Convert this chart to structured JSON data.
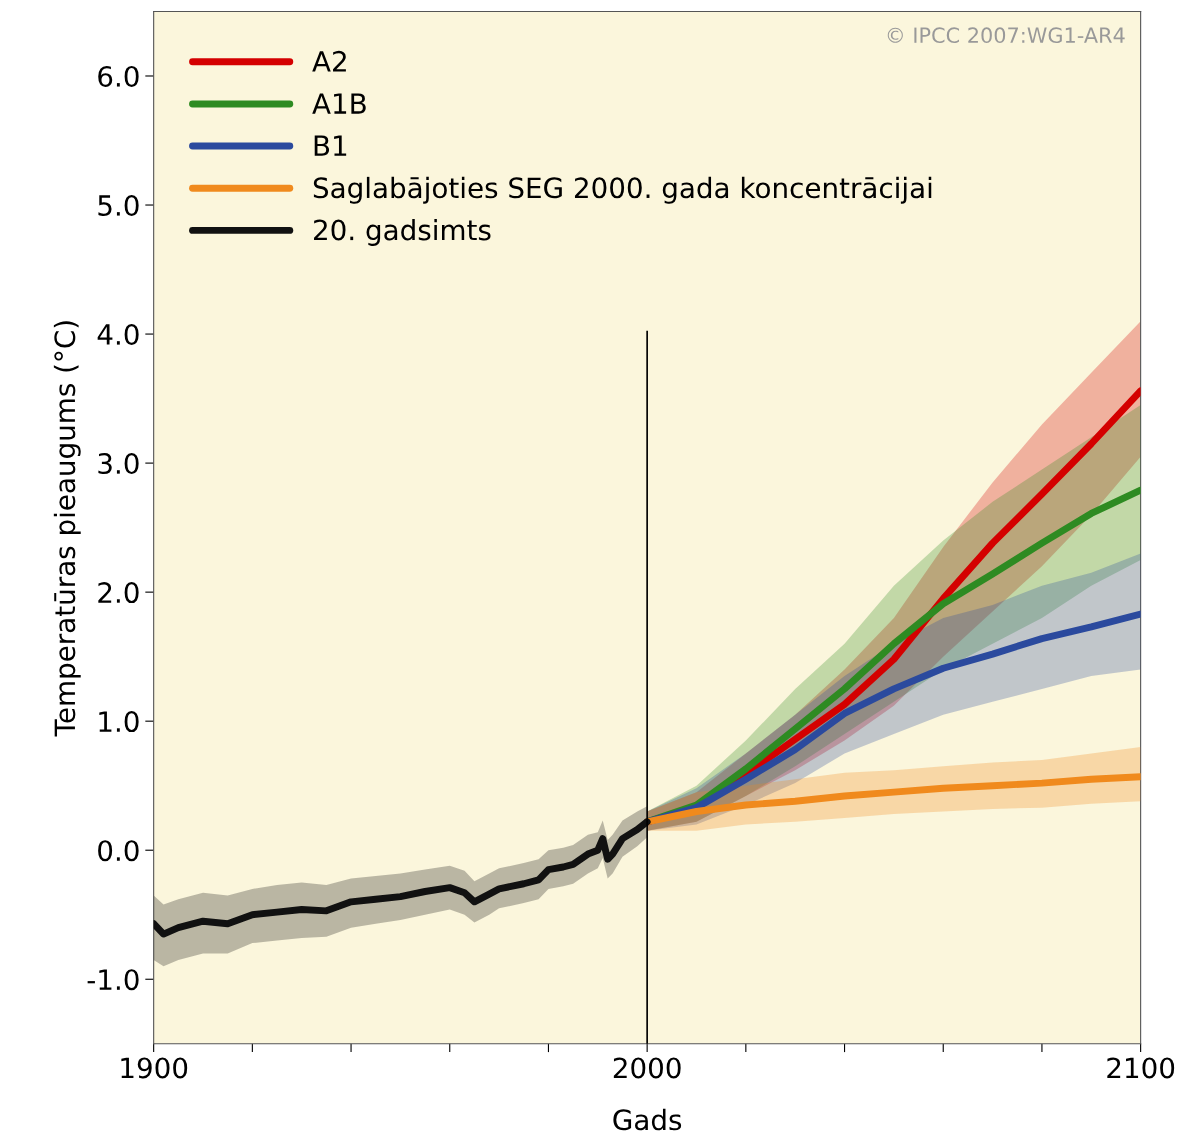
{
  "chart_data": {
    "type": "line",
    "xlabel": "Gads",
    "ylabel": "Temperatūras pieaugums (°C)",
    "xlim": [
      1900,
      2100
    ],
    "xticks": [
      1900,
      {
        "value": 1920,
        "label": null
      },
      {
        "value": 1940,
        "label": null
      },
      {
        "value": 1960,
        "label": null
      },
      {
        "value": 1980,
        "label": null
      },
      2000,
      {
        "value": 2020,
        "label": null
      },
      {
        "value": 2040,
        "label": null
      },
      {
        "value": 2060,
        "label": null
      },
      {
        "value": 2080,
        "label": null
      },
      2100
    ],
    "ylim": [
      -1.5,
      6.5
    ],
    "yticks": [
      {
        "value": -1.0,
        "label": "-1.0"
      },
      {
        "value": 0.0,
        "label": "0.0"
      },
      {
        "value": 1.0,
        "label": "1.0"
      },
      {
        "value": 2.0,
        "label": "2.0"
      },
      {
        "value": 3.0,
        "label": "3.0"
      },
      {
        "value": 4.0,
        "label": "4.0"
      },
      {
        "value": 5.0,
        "label": "5.0"
      },
      {
        "value": 6.0,
        "label": "6.0"
      }
    ],
    "grid": false,
    "legend": "top left",
    "line_style": "solid",
    "marker": "none",
    "ref_lines": [
      {
        "axis": "x",
        "value": 2000,
        "label": null,
        "color": "#000000"
      }
    ],
    "annotations": [
      "© IPCC 2007:WG1-AR4"
    ],
    "series": [
      {
        "name": "A2",
        "color": "#d40000",
        "x": [
          2000,
          2010,
          2020,
          2030,
          2040,
          2050,
          2060,
          2070,
          2080,
          2090,
          2100
        ],
        "values": [
          0.22,
          0.33,
          0.59,
          0.86,
          1.13,
          1.48,
          1.95,
          2.38,
          2.76,
          3.15,
          3.56
        ],
        "lower": [
          0.15,
          0.22,
          0.42,
          0.62,
          0.85,
          1.12,
          1.5,
          1.85,
          2.2,
          2.6,
          3.05
        ],
        "upper": [
          0.3,
          0.45,
          0.75,
          1.05,
          1.4,
          1.8,
          2.35,
          2.85,
          3.3,
          3.7,
          4.1
        ]
      },
      {
        "name": "A1B",
        "color": "#2e8b22",
        "x": [
          2000,
          2010,
          2020,
          2030,
          2040,
          2050,
          2060,
          2070,
          2080,
          2090,
          2100
        ],
        "values": [
          0.22,
          0.35,
          0.63,
          0.94,
          1.25,
          1.6,
          1.91,
          2.14,
          2.38,
          2.61,
          2.79
        ],
        "lower": [
          0.15,
          0.22,
          0.42,
          0.65,
          0.9,
          1.15,
          1.4,
          1.6,
          1.8,
          2.05,
          2.25
        ],
        "upper": [
          0.3,
          0.5,
          0.85,
          1.25,
          1.6,
          2.05,
          2.4,
          2.7,
          2.95,
          3.2,
          3.45
        ]
      },
      {
        "name": "B1",
        "color": "#2b4a9e",
        "x": [
          2000,
          2010,
          2020,
          2030,
          2040,
          2050,
          2060,
          2070,
          2080,
          2090,
          2100
        ],
        "values": [
          0.22,
          0.33,
          0.55,
          0.78,
          1.06,
          1.25,
          1.41,
          1.52,
          1.64,
          1.73,
          1.83
        ],
        "lower": [
          0.15,
          0.2,
          0.35,
          0.52,
          0.75,
          0.9,
          1.05,
          1.15,
          1.25,
          1.35,
          1.4
        ],
        "upper": [
          0.3,
          0.48,
          0.75,
          1.05,
          1.35,
          1.6,
          1.8,
          1.9,
          2.05,
          2.15,
          2.3
        ]
      },
      {
        "name": "Saglabājoties SEG 2000. gada koncentrācijai",
        "color": "#f08a1d",
        "x": [
          2000,
          2010,
          2020,
          2030,
          2040,
          2050,
          2060,
          2070,
          2080,
          2090,
          2100
        ],
        "values": [
          0.22,
          0.3,
          0.35,
          0.38,
          0.42,
          0.45,
          0.48,
          0.5,
          0.52,
          0.55,
          0.57
        ],
        "lower": [
          0.15,
          0.15,
          0.2,
          0.22,
          0.25,
          0.28,
          0.3,
          0.32,
          0.33,
          0.36,
          0.38
        ],
        "upper": [
          0.3,
          0.45,
          0.5,
          0.55,
          0.6,
          0.62,
          0.65,
          0.68,
          0.7,
          0.75,
          0.8
        ]
      },
      {
        "name": "20. gadsimts",
        "color": "#111111",
        "x": [
          1900,
          1902,
          1905,
          1910,
          1915,
          1920,
          1925,
          1930,
          1935,
          1940,
          1945,
          1950,
          1955,
          1960,
          1963,
          1965,
          1968,
          1970,
          1975,
          1978,
          1980,
          1983,
          1985,
          1988,
          1990,
          1991,
          1992,
          1993,
          1995,
          1998,
          2000
        ],
        "values": [
          -0.57,
          -0.65,
          -0.6,
          -0.55,
          -0.57,
          -0.5,
          -0.48,
          -0.46,
          -0.47,
          -0.4,
          -0.38,
          -0.36,
          -0.32,
          -0.29,
          -0.33,
          -0.4,
          -0.34,
          -0.3,
          -0.26,
          -0.23,
          -0.15,
          -0.13,
          -0.11,
          -0.03,
          0.0,
          0.09,
          -0.07,
          -0.03,
          0.09,
          0.16,
          0.22
        ],
        "lower": [
          -0.85,
          -0.9,
          -0.85,
          -0.8,
          -0.8,
          -0.72,
          -0.7,
          -0.68,
          -0.67,
          -0.6,
          -0.57,
          -0.54,
          -0.5,
          -0.46,
          -0.5,
          -0.56,
          -0.5,
          -0.45,
          -0.41,
          -0.38,
          -0.3,
          -0.28,
          -0.26,
          -0.18,
          -0.14,
          -0.06,
          -0.22,
          -0.18,
          -0.05,
          0.03,
          0.1
        ],
        "upper": [
          -0.35,
          -0.42,
          -0.38,
          -0.33,
          -0.35,
          -0.3,
          -0.27,
          -0.25,
          -0.27,
          -0.22,
          -0.2,
          -0.18,
          -0.15,
          -0.12,
          -0.16,
          -0.24,
          -0.18,
          -0.14,
          -0.1,
          -0.07,
          0.0,
          0.02,
          0.04,
          0.12,
          0.14,
          0.23,
          0.08,
          0.12,
          0.23,
          0.3,
          0.34
        ]
      }
    ]
  }
}
